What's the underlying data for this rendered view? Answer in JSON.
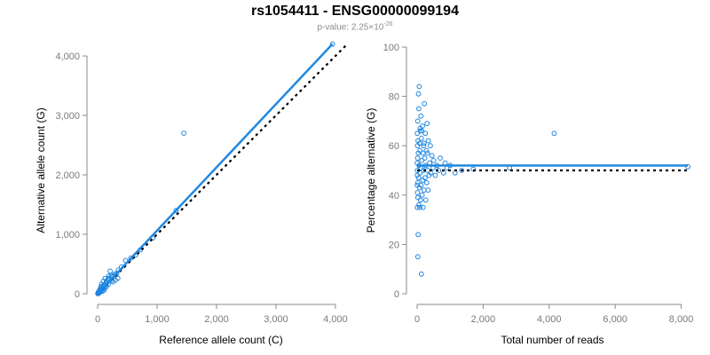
{
  "title": "rs1054411 - ENSG00000099194",
  "subtitle": {
    "prefix": "p-value: 2.25×10",
    "exponent": "-26"
  },
  "colors": {
    "points": "#1f86e0",
    "fit_line": "#2188e0",
    "reference_line": "#000000",
    "axis": "#8a8a8a"
  },
  "chart_data": [
    {
      "type": "scatter",
      "xlabel": "Reference allele count (C)",
      "ylabel": "Alternative allele count (G)",
      "xlim": [
        0,
        4000
      ],
      "ylim": [
        0,
        4000
      ],
      "xticks": [
        0,
        1000,
        2000,
        3000,
        4000
      ],
      "yticks": [
        0,
        1000,
        2000,
        3000,
        4000
      ],
      "xtick_labels": [
        "0",
        "1,000",
        "2,000",
        "3,000",
        "4,000"
      ],
      "ytick_labels": [
        "0",
        "1,000",
        "2,000",
        "3,000",
        "4,000"
      ],
      "grid": false,
      "points": [
        [
          3950,
          4200
        ],
        [
          1450,
          2700
        ],
        [
          1320,
          1400
        ],
        [
          930,
          940
        ],
        [
          720,
          740
        ],
        [
          640,
          650
        ],
        [
          560,
          600
        ],
        [
          470,
          560
        ],
        [
          400,
          450
        ],
        [
          350,
          400
        ],
        [
          320,
          340
        ],
        [
          290,
          330
        ],
        [
          260,
          300
        ],
        [
          240,
          280
        ],
        [
          230,
          220
        ],
        [
          210,
          380
        ],
        [
          200,
          250
        ],
        [
          190,
          300
        ],
        [
          180,
          160
        ],
        [
          170,
          230
        ],
        [
          160,
          200
        ],
        [
          150,
          120
        ],
        [
          140,
          180
        ],
        [
          130,
          150
        ],
        [
          125,
          260
        ],
        [
          120,
          100
        ],
        [
          110,
          140
        ],
        [
          100,
          90
        ],
        [
          95,
          210
        ],
        [
          90,
          130
        ],
        [
          85,
          60
        ],
        [
          80,
          110
        ],
        [
          75,
          40
        ],
        [
          70,
          90
        ],
        [
          65,
          160
        ],
        [
          60,
          70
        ],
        [
          55,
          120
        ],
        [
          50,
          50
        ],
        [
          45,
          80
        ],
        [
          40,
          30
        ],
        [
          35,
          60
        ],
        [
          30,
          20
        ],
        [
          25,
          45
        ],
        [
          20,
          10
        ],
        [
          15,
          30
        ],
        [
          10,
          5
        ],
        [
          8,
          15
        ],
        [
          5,
          8
        ],
        [
          3,
          2
        ],
        [
          260,
          200
        ],
        [
          340,
          260
        ],
        [
          230,
          310
        ],
        [
          300,
          230
        ],
        [
          180,
          260
        ],
        [
          150,
          210
        ],
        [
          110,
          60
        ]
      ],
      "fit_line": {
        "x": [
          0,
          3950
        ],
        "y": [
          0,
          4200
        ]
      },
      "reference_line": {
        "x": [
          0,
          4200
        ],
        "y": [
          0,
          4200
        ]
      }
    },
    {
      "type": "scatter",
      "xlabel": "Total number of reads",
      "ylabel": "Percentage alternative (G)",
      "xlim": [
        0,
        8000
      ],
      "ylim": [
        0,
        100
      ],
      "xticks": [
        0,
        2000,
        4000,
        6000,
        8000
      ],
      "yticks": [
        0,
        20,
        40,
        60,
        80,
        100
      ],
      "xtick_labels": [
        "0",
        "2,000",
        "4,000",
        "6,000",
        "8,000"
      ],
      "ytick_labels": [
        "0",
        "20",
        "40",
        "60",
        "80",
        "100"
      ],
      "grid": false,
      "points": [
        [
          8200,
          51.5
        ],
        [
          4150,
          65
        ],
        [
          2800,
          51
        ],
        [
          1700,
          50.5
        ],
        [
          1350,
          50
        ],
        [
          1150,
          49
        ],
        [
          1000,
          52
        ],
        [
          900,
          51
        ],
        [
          850,
          53
        ],
        [
          800,
          49
        ],
        [
          700,
          55
        ],
        [
          650,
          50
        ],
        [
          600,
          52
        ],
        [
          550,
          48
        ],
        [
          500,
          54
        ],
        [
          480,
          51
        ],
        [
          450,
          56
        ],
        [
          420,
          49
        ],
        [
          400,
          60
        ],
        [
          380,
          53
        ],
        [
          360,
          48
        ],
        [
          340,
          62
        ],
        [
          320,
          50
        ],
        [
          300,
          69
        ],
        [
          290,
          45
        ],
        [
          280,
          58
        ],
        [
          260,
          52
        ],
        [
          250,
          65
        ],
        [
          240,
          47
        ],
        [
          230,
          55
        ],
        [
          220,
          77
        ],
        [
          210,
          42
        ],
        [
          200,
          60
        ],
        [
          190,
          50
        ],
        [
          180,
          57
        ],
        [
          170,
          46
        ],
        [
          160,
          68
        ],
        [
          150,
          40
        ],
        [
          140,
          54
        ],
        [
          130,
          63
        ],
        [
          120,
          44
        ],
        [
          115,
          72
        ],
        [
          110,
          51
        ],
        [
          100,
          38
        ],
        [
          95,
          66
        ],
        [
          90,
          49
        ],
        [
          85,
          58
        ],
        [
          80,
          35
        ],
        [
          75,
          61
        ],
        [
          70,
          43
        ],
        [
          65,
          84
        ],
        [
          60,
          52
        ],
        [
          55,
          36
        ],
        [
          50,
          75
        ],
        [
          45,
          47
        ],
        [
          40,
          81
        ],
        [
          35,
          57
        ],
        [
          30,
          24
        ],
        [
          28,
          62
        ],
        [
          25,
          39
        ],
        [
          22,
          15
        ],
        [
          20,
          70
        ],
        [
          18,
          45
        ],
        [
          15,
          55
        ],
        [
          12,
          41
        ],
        [
          10,
          60
        ],
        [
          8,
          50
        ],
        [
          6,
          35
        ],
        [
          5,
          65
        ],
        [
          4,
          48
        ],
        [
          3,
          53
        ],
        [
          2,
          44
        ],
        [
          130,
          8
        ],
        [
          180,
          35
        ],
        [
          260,
          38
        ],
        [
          330,
          42
        ],
        [
          140,
          66
        ],
        [
          210,
          61
        ],
        [
          310,
          57
        ],
        [
          90,
          67
        ]
      ],
      "fit_line": {
        "x": [
          0,
          8200
        ],
        "y": [
          52,
          52
        ]
      },
      "reference_line": {
        "x": [
          0,
          8200
        ],
        "y": [
          50,
          50
        ]
      }
    }
  ]
}
